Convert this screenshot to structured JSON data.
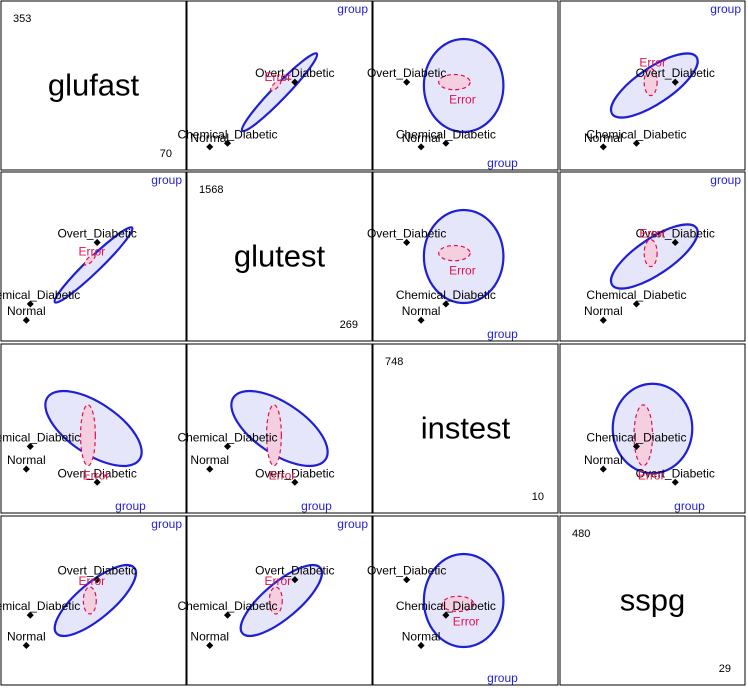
{
  "chart_data": {
    "type": "scatter",
    "variables": [
      {
        "name": "glufast",
        "max": 353,
        "min": 70
      },
      {
        "name": "glutest",
        "max": 1568,
        "min": 269
      },
      {
        "name": "instest",
        "max": 748,
        "min": 10
      },
      {
        "name": "sspg",
        "max": 480,
        "min": 29
      }
    ],
    "hypothesis_label": "group",
    "error_label": "Error",
    "groups": [
      {
        "name": "Normal",
        "means": {
          "glufast": 92,
          "glutest": 349,
          "instest": 173,
          "sspg": 115
        }
      },
      {
        "name": "Chemical_Diabetic",
        "means": {
          "glufast": 99,
          "glutest": 494,
          "instest": 288,
          "sspg": 209
        }
      },
      {
        "name": "Overt_Diabetic",
        "means": {
          "glufast": 218,
          "glutest": 1044,
          "instest": 106,
          "sspg": 319
        }
      }
    ],
    "colors": {
      "hypothesis": "#1f1fd6",
      "hypothesis_fill": "#e6e6fb",
      "error": "#e0104d",
      "error_fill": "#f4cfe0",
      "points": "#000000"
    }
  }
}
